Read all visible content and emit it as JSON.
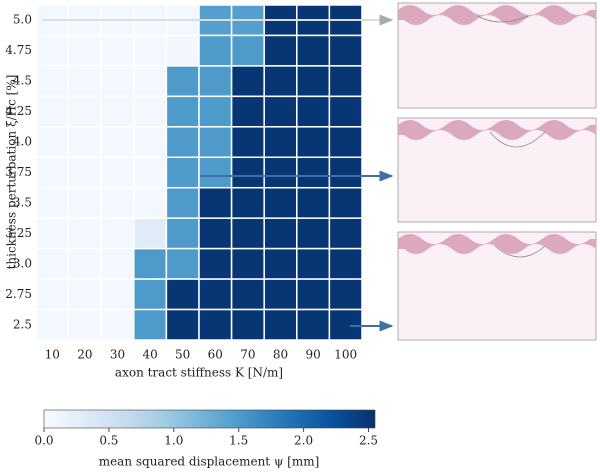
{
  "chart_data": {
    "type": "heatmap",
    "x_label": "axon tract stiffness K [N/m]",
    "y_label": "thickness perturbation ξ/Hc [%]",
    "categories": [
      "10",
      "20",
      "30",
      "40",
      "50",
      "60",
      "70",
      "80",
      "90",
      "100"
    ],
    "y_categories": [
      "5.0",
      "4.75",
      "4.5",
      "4.25",
      "4.0",
      "3.75",
      "3.5",
      "3.25",
      "3.0",
      "2.75",
      "2.5"
    ],
    "z": [
      [
        0.05,
        0.05,
        0.05,
        0.05,
        0.05,
        1.45,
        1.45,
        2.5,
        2.5,
        2.5
      ],
      [
        0.05,
        0.05,
        0.05,
        0.05,
        0.08,
        1.5,
        1.5,
        2.5,
        2.5,
        2.5
      ],
      [
        0.05,
        0.05,
        0.05,
        0.05,
        1.5,
        1.5,
        2.5,
        2.5,
        2.5,
        2.5
      ],
      [
        0.05,
        0.05,
        0.05,
        0.05,
        1.5,
        1.5,
        2.5,
        2.5,
        2.5,
        2.5
      ],
      [
        0.05,
        0.05,
        0.05,
        0.05,
        1.5,
        1.5,
        2.5,
        2.5,
        2.5,
        2.5
      ],
      [
        0.05,
        0.05,
        0.05,
        0.05,
        1.5,
        1.5,
        2.5,
        2.5,
        2.5,
        2.5
      ],
      [
        0.05,
        0.05,
        0.05,
        0.05,
        1.5,
        2.5,
        2.5,
        2.5,
        2.5,
        2.5
      ],
      [
        0.05,
        0.05,
        0.05,
        0.3,
        1.5,
        2.5,
        2.5,
        2.5,
        2.5,
        2.5
      ],
      [
        0.05,
        0.05,
        0.05,
        1.5,
        1.5,
        2.5,
        2.5,
        2.5,
        2.5,
        2.5
      ],
      [
        0.05,
        0.05,
        0.05,
        1.5,
        2.5,
        2.5,
        2.5,
        2.5,
        2.5,
        2.5
      ],
      [
        0.05,
        0.05,
        0.05,
        1.5,
        2.5,
        2.5,
        2.5,
        2.5,
        2.5,
        2.5
      ]
    ],
    "colormap": "Blues",
    "colorbar_label": "mean squared displacement ψ [mm]",
    "colorbar_lim": [
      0,
      2.55
    ],
    "colorbar_ticks": [
      {
        "value": 0,
        "label": "0.0"
      },
      0.5,
      {
        "value": 1,
        "label": "1.0"
      },
      1.5,
      {
        "value": 2,
        "label": "2.0"
      },
      2.5
    ]
  }
}
